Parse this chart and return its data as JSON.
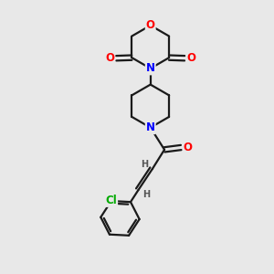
{
  "bg_color": "#e8e8e8",
  "bond_color": "#1a1a1a",
  "atom_colors": {
    "O": "#ff0000",
    "N": "#0000ff",
    "Cl": "#00aa00",
    "C": "#1a1a1a",
    "H": "#555555"
  },
  "fig_width": 3.0,
  "fig_height": 3.0
}
